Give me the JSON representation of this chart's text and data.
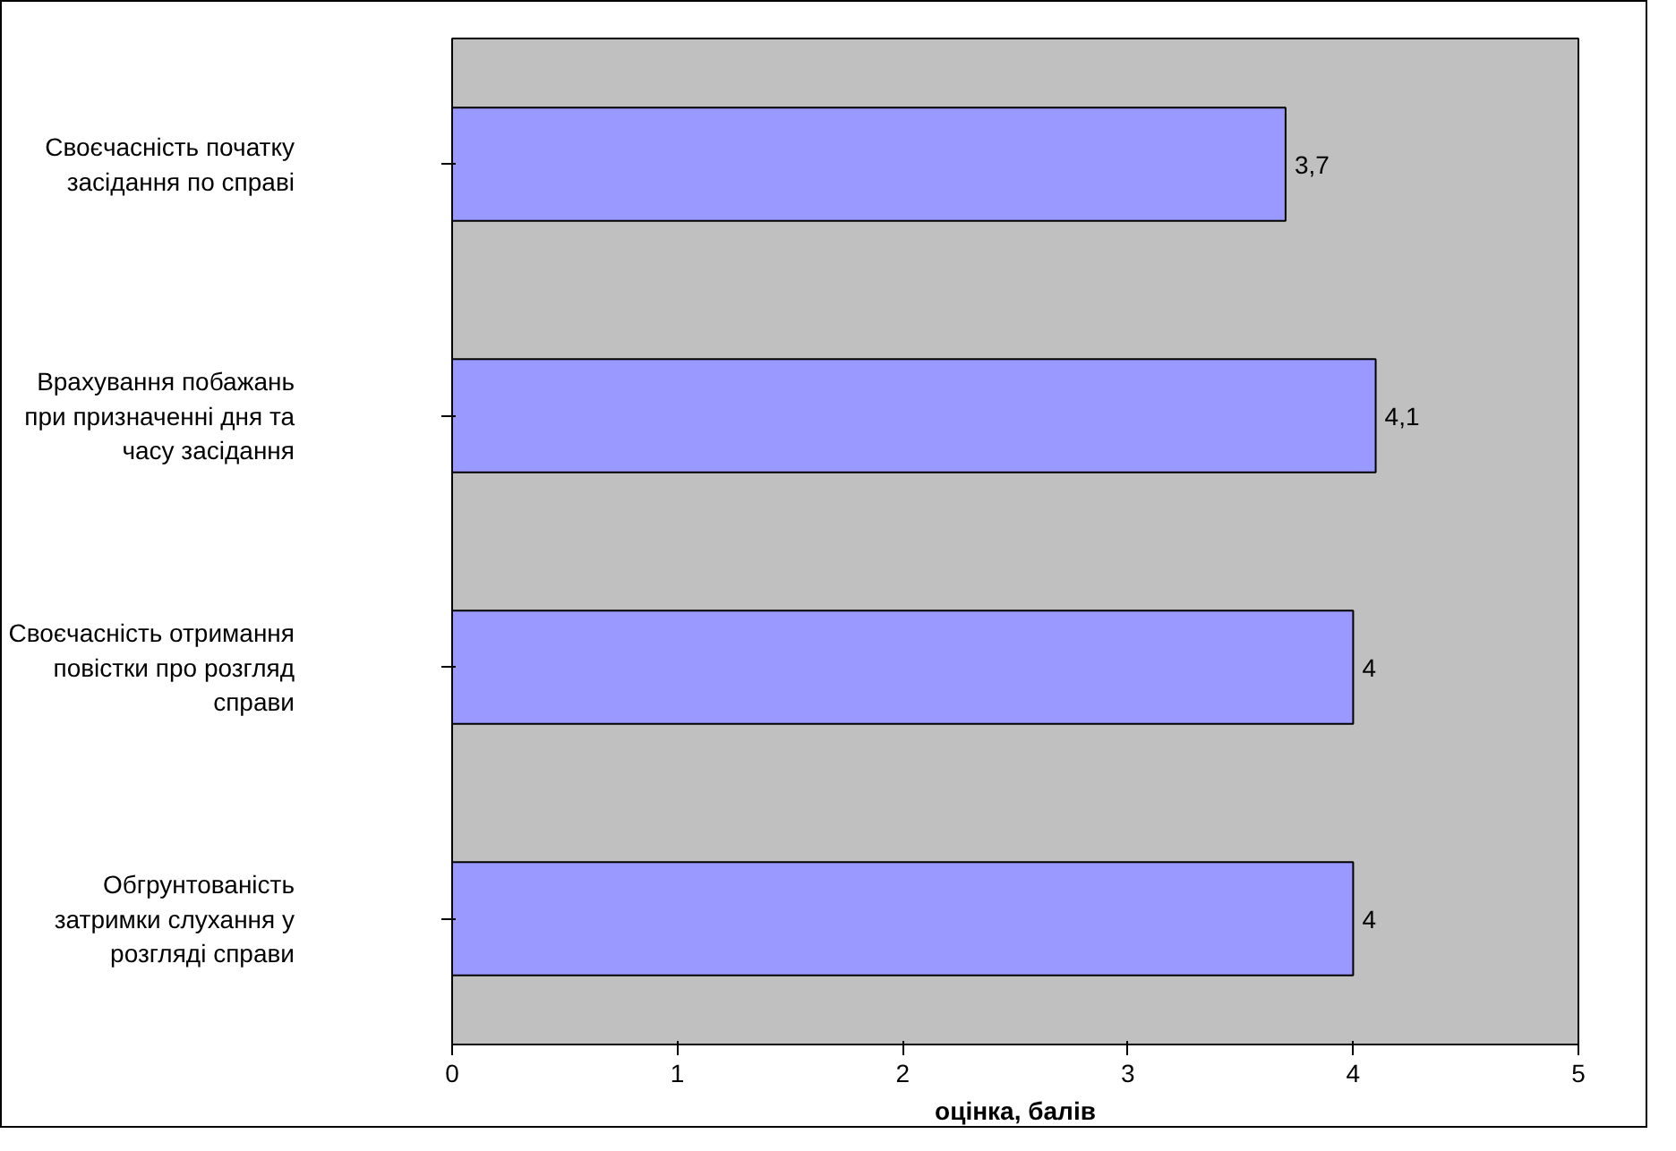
{
  "chart_data": {
    "type": "bar",
    "orientation": "horizontal",
    "xlabel": "оцінка, балів",
    "categories": [
      "Своєчасність початку засідання по справі",
      "Врахування побажань при призначенні дня та часу засідання",
      "Своєчасність отримання повістки про розгляд справи",
      "Обгрунтованість затримки слухання у розгляді справи"
    ],
    "values": [
      3.7,
      4.1,
      4,
      4
    ],
    "value_labels": [
      "3,7",
      "4,1",
      "4",
      "4"
    ],
    "color": "#9999ff",
    "xlim": [
      0,
      5
    ],
    "xticks": [
      0,
      1,
      2,
      3,
      4,
      5
    ],
    "grid": false
  }
}
